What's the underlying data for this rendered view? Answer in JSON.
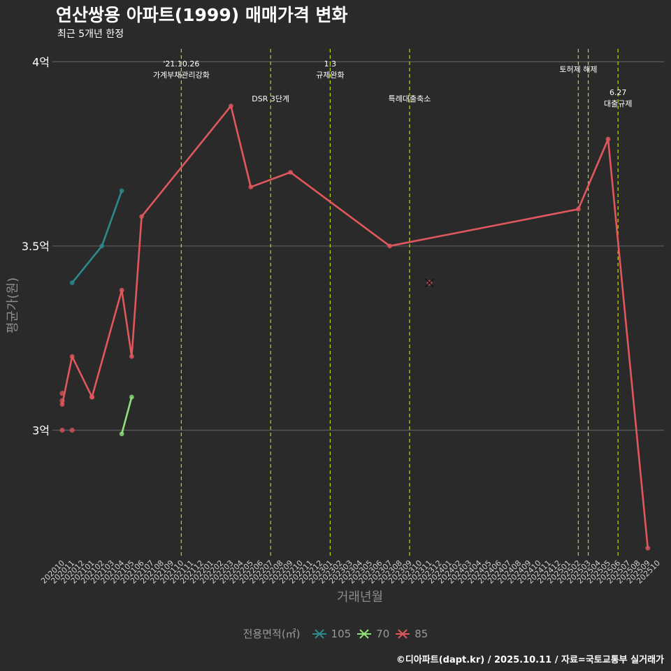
{
  "header": {
    "title": "연산쌍용 아파트(1999) 매매가격 변화",
    "subtitle": "최근 5개년 한정"
  },
  "caption": "©디아파트(dapt.kr) / 2025.10.11 / 자료=국토교통부 실거래가",
  "colors": {
    "background": "#2b2a2a",
    "grid": "#5c5c5c",
    "event_line": "#c8d400",
    "series_105": "#2a8a8c",
    "series_70": "#8fe07a",
    "series_85": "#e0575d"
  },
  "chart_data": {
    "type": "line",
    "title": "연산쌍용 아파트(1999) 매매가격 변화",
    "xlabel": "거래년월",
    "ylabel": "평균가(원)",
    "ylim": [
      2.65,
      4.05
    ],
    "y_ticks": [
      3.0,
      3.5,
      4.0
    ],
    "y_tick_labels": [
      "3억",
      "3.5억",
      "4억"
    ],
    "x_categories": [
      "202010",
      "202011",
      "202012",
      "202101",
      "202102",
      "202103",
      "202104",
      "202105",
      "202106",
      "202107",
      "202108",
      "202109",
      "202110",
      "202111",
      "202112",
      "202201",
      "202202",
      "202203",
      "202204",
      "202205",
      "202206",
      "202207",
      "202208",
      "202209",
      "202210",
      "202211",
      "202212",
      "202301",
      "202302",
      "202303",
      "202304",
      "202305",
      "202306",
      "202307",
      "202308",
      "202309",
      "202310",
      "202311",
      "202312",
      "202401",
      "202402",
      "202403",
      "202404",
      "202405",
      "202406",
      "202407",
      "202408",
      "202409",
      "202410",
      "202411",
      "202412",
      "202501",
      "202502",
      "202503",
      "202504",
      "202505",
      "202506",
      "202507",
      "202508",
      "202509",
      "202510"
    ],
    "legend_title": "전용면적(㎡)",
    "series": [
      {
        "name": "105",
        "color": "#2a8a8c",
        "points": [
          [
            "202011",
            3.4
          ],
          [
            "202102",
            3.5
          ],
          [
            "202104",
            3.65
          ]
        ]
      },
      {
        "name": "70",
        "color": "#8fe07a",
        "points": [
          [
            "202104",
            2.99
          ],
          [
            "202105",
            3.09
          ]
        ]
      },
      {
        "name": "85",
        "color": "#e0575d",
        "points": [
          [
            "202010",
            3.07
          ],
          [
            "202011",
            3.2
          ],
          [
            "202101",
            3.09
          ],
          [
            "202104",
            3.38
          ],
          [
            "202105",
            3.2
          ],
          [
            "202106",
            3.58
          ],
          [
            "202203",
            3.88
          ],
          [
            "202205",
            3.66
          ],
          [
            "202209",
            3.7
          ],
          [
            "202307",
            3.5
          ],
          [
            "202502",
            3.6
          ],
          [
            "202505",
            3.79
          ],
          [
            "202509",
            2.68
          ]
        ]
      }
    ],
    "scatter_points": [
      {
        "series": "85",
        "x": "202010",
        "y": 3.1
      },
      {
        "series": "85",
        "x": "202010",
        "y": 3.08
      },
      {
        "series": "85",
        "x": "202010",
        "y": 3.0
      },
      {
        "series": "85",
        "x": "202011",
        "y": 3.0
      },
      {
        "series": "85",
        "x": "202101",
        "y": 3.09
      }
    ],
    "cross_marker": {
      "series": "85",
      "x": "202311",
      "y": 3.4
    },
    "events": [
      {
        "x": "202110",
        "lines": [
          "'21.10.26",
          "가계부채관리강화"
        ],
        "level": 0
      },
      {
        "x": "202207",
        "lines": [
          "DSR 3단계"
        ],
        "level": 1
      },
      {
        "x": "202301",
        "lines": [
          "1.3",
          "규제완화"
        ],
        "level": 0
      },
      {
        "x": "202309",
        "lines": [
          "특례대출축소"
        ],
        "level": 1
      },
      {
        "x": "202502",
        "lines": [
          "토허제 해제"
        ],
        "level": 0
      },
      {
        "x": "202503",
        "lines": [],
        "level": 0
      },
      {
        "x": "202506",
        "lines": [
          "6.27",
          "대출규제"
        ],
        "level": 1
      }
    ]
  }
}
